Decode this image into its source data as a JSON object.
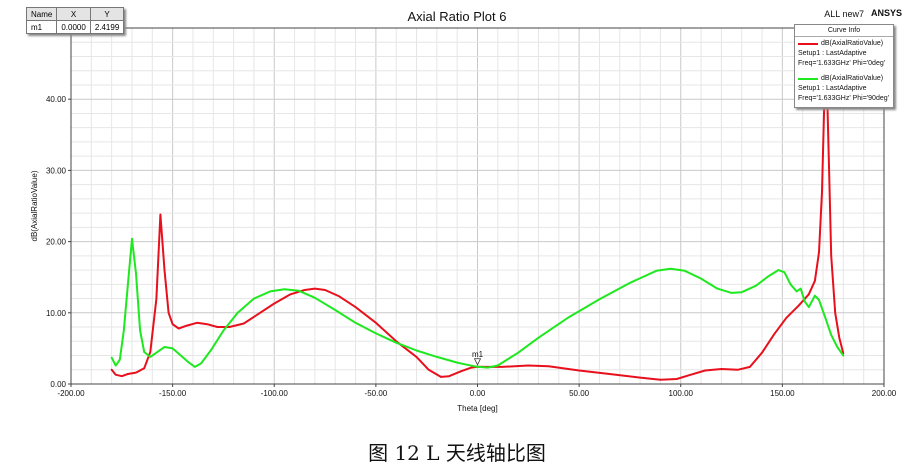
{
  "marker_table": {
    "headers": [
      "Name",
      "X",
      "Y"
    ],
    "row": {
      "name": "m1",
      "x": "0.0000",
      "y": "2.4199"
    }
  },
  "header": {
    "title": "Axial Ratio Plot 6",
    "design": "ALL new7",
    "brand": "ANSYS"
  },
  "legend": {
    "title": "Curve Info",
    "entries": [
      {
        "name": "dB(AxialRatioValue)",
        "setup": "Setup1 : LastAdaptive",
        "params": "Freq='1.633GHz' Phi='0deg'",
        "color": "#e8101c"
      },
      {
        "name": "dB(AxialRatioValue)",
        "setup": "Setup1 : LastAdaptive",
        "params": "Freq='1.633GHz' Phi='90deg'",
        "color": "#1ee81e"
      }
    ]
  },
  "caption": "图 12 L 天线轴比图",
  "chart_data": {
    "type": "line",
    "title": "Axial Ratio Plot 6",
    "xlabel": "Theta [deg]",
    "ylabel": "dB(AxialRatioValue)",
    "xlim": [
      -200,
      200
    ],
    "ylim": [
      0,
      50
    ],
    "xticks": [
      -200,
      -150,
      -100,
      -50,
      0,
      50,
      100,
      150,
      200
    ],
    "xtick_labels": [
      "-200.00",
      "-150.00",
      "-100.00",
      "-50.00",
      "0.00",
      "50.00",
      "100.00",
      "150.00",
      "200.00"
    ],
    "yticks": [
      0,
      10,
      20,
      30,
      40
    ],
    "ytick_labels": [
      "0.00",
      "10.00",
      "20.00",
      "30.00",
      "40.00"
    ],
    "grid": true,
    "legend_position": "top-right",
    "marker": {
      "label": "m1",
      "x": 0.0,
      "y": 2.4199,
      "series": 0
    },
    "series": [
      {
        "name": "dB(AxialRatioValue)",
        "color": "#e8101c",
        "points": [
          [
            -180,
            2.0
          ],
          [
            -178,
            1.3
          ],
          [
            -175,
            1.1
          ],
          [
            -172,
            1.4
          ],
          [
            -168,
            1.6
          ],
          [
            -164,
            2.2
          ],
          [
            -161,
            4.5
          ],
          [
            -158,
            12.0
          ],
          [
            -156,
            23.8
          ],
          [
            -154,
            16.0
          ],
          [
            -152,
            10.0
          ],
          [
            -150,
            8.4
          ],
          [
            -147,
            7.8
          ],
          [
            -143,
            8.2
          ],
          [
            -138,
            8.6
          ],
          [
            -133,
            8.4
          ],
          [
            -128,
            8.0
          ],
          [
            -122,
            8.0
          ],
          [
            -115,
            8.5
          ],
          [
            -108,
            9.8
          ],
          [
            -100,
            11.3
          ],
          [
            -92,
            12.6
          ],
          [
            -85,
            13.2
          ],
          [
            -80,
            13.4
          ],
          [
            -75,
            13.2
          ],
          [
            -68,
            12.3
          ],
          [
            -60,
            10.8
          ],
          [
            -50,
            8.6
          ],
          [
            -40,
            6.0
          ],
          [
            -30,
            3.8
          ],
          [
            -24,
            2.0
          ],
          [
            -18,
            1.0
          ],
          [
            -14,
            1.1
          ],
          [
            -8,
            1.8
          ],
          [
            -3,
            2.3
          ],
          [
            0,
            2.42
          ],
          [
            5,
            2.4
          ],
          [
            12,
            2.4
          ],
          [
            25,
            2.6
          ],
          [
            35,
            2.5
          ],
          [
            50,
            1.9
          ],
          [
            65,
            1.4
          ],
          [
            80,
            0.9
          ],
          [
            90,
            0.6
          ],
          [
            98,
            0.7
          ],
          [
            105,
            1.3
          ],
          [
            112,
            1.9
          ],
          [
            120,
            2.1
          ],
          [
            128,
            2.0
          ],
          [
            134,
            2.4
          ],
          [
            140,
            4.4
          ],
          [
            146,
            7.0
          ],
          [
            152,
            9.3
          ],
          [
            158,
            11.0
          ],
          [
            163,
            12.6
          ],
          [
            166,
            14.5
          ],
          [
            168,
            18.5
          ],
          [
            169.5,
            27.0
          ],
          [
            170.5,
            38.0
          ],
          [
            171.2,
            44.0
          ],
          [
            172,
            41.0
          ],
          [
            173,
            30.0
          ],
          [
            174,
            18.0
          ],
          [
            176,
            10.0
          ],
          [
            178,
            6.5
          ],
          [
            180,
            4.3
          ]
        ]
      },
      {
        "name": "dB(AxialRatioValue)",
        "color": "#1ee81e",
        "points": [
          [
            -180,
            3.7
          ],
          [
            -178,
            2.6
          ],
          [
            -176,
            3.4
          ],
          [
            -174,
            7.5
          ],
          [
            -172,
            14.0
          ],
          [
            -170,
            20.4
          ],
          [
            -168,
            15.5
          ],
          [
            -166,
            7.5
          ],
          [
            -164,
            4.5
          ],
          [
            -161,
            3.8
          ],
          [
            -158,
            4.4
          ],
          [
            -154,
            5.2
          ],
          [
            -150,
            5.0
          ],
          [
            -146,
            4.0
          ],
          [
            -142,
            3.0
          ],
          [
            -139,
            2.4
          ],
          [
            -136,
            2.9
          ],
          [
            -131,
            4.8
          ],
          [
            -125,
            7.5
          ],
          [
            -118,
            10.0
          ],
          [
            -110,
            12.0
          ],
          [
            -102,
            13.0
          ],
          [
            -95,
            13.3
          ],
          [
            -88,
            13.1
          ],
          [
            -80,
            12.1
          ],
          [
            -70,
            10.4
          ],
          [
            -60,
            8.6
          ],
          [
            -50,
            7.1
          ],
          [
            -40,
            5.8
          ],
          [
            -30,
            4.7
          ],
          [
            -20,
            3.8
          ],
          [
            -10,
            3.0
          ],
          [
            -5,
            2.7
          ],
          [
            0,
            2.42
          ],
          [
            5,
            2.3
          ],
          [
            10,
            2.6
          ],
          [
            20,
            4.4
          ],
          [
            30,
            6.5
          ],
          [
            45,
            9.4
          ],
          [
            60,
            11.9
          ],
          [
            75,
            14.2
          ],
          [
            88,
            15.9
          ],
          [
            95,
            16.2
          ],
          [
            102,
            15.9
          ],
          [
            110,
            14.8
          ],
          [
            118,
            13.4
          ],
          [
            125,
            12.8
          ],
          [
            130,
            12.9
          ],
          [
            137,
            13.8
          ],
          [
            143,
            15.1
          ],
          [
            148,
            16.0
          ],
          [
            151,
            15.7
          ],
          [
            154,
            14.0
          ],
          [
            157,
            13.0
          ],
          [
            159,
            13.4
          ],
          [
            161,
            11.6
          ],
          [
            163,
            10.8
          ],
          [
            166,
            12.4
          ],
          [
            168,
            11.8
          ],
          [
            171,
            9.4
          ],
          [
            174,
            6.9
          ],
          [
            177,
            5.2
          ],
          [
            180,
            4.0
          ]
        ]
      }
    ]
  }
}
